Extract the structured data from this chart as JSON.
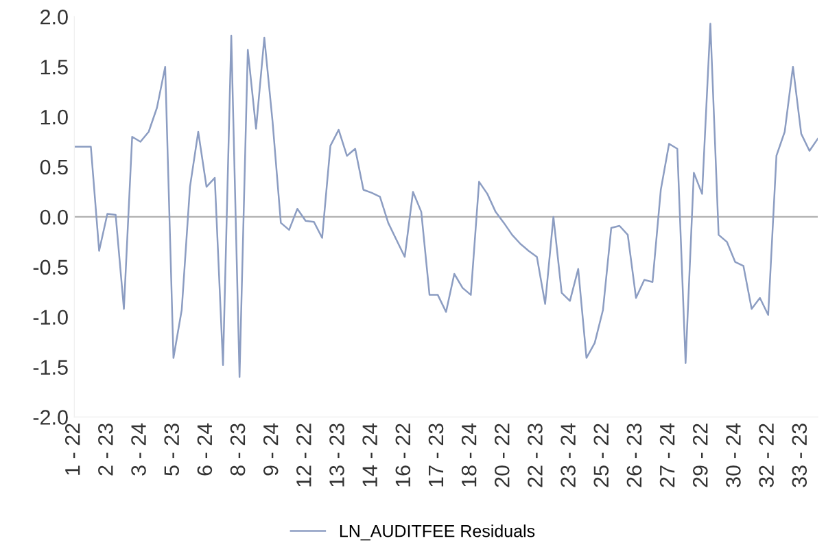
{
  "chart_data": {
    "type": "line",
    "categories": [
      "1 - 22",
      null,
      null,
      null,
      "2 - 23",
      null,
      null,
      null,
      "3 - 24",
      null,
      null,
      null,
      "5 - 23",
      null,
      null,
      null,
      "6 - 24",
      null,
      null,
      null,
      "8 - 23",
      null,
      null,
      null,
      "9 - 24",
      null,
      null,
      null,
      "12 - 22",
      null,
      null,
      null,
      "13 - 23",
      null,
      null,
      null,
      "14 - 24",
      null,
      null,
      null,
      "16 - 22",
      null,
      null,
      null,
      "17 - 23",
      null,
      null,
      null,
      "18 - 24",
      null,
      null,
      null,
      "20 - 22",
      null,
      null,
      null,
      "22 - 23",
      null,
      null,
      null,
      "23 - 24",
      null,
      null,
      null,
      "25 - 22",
      null,
      null,
      null,
      "26 - 23",
      null,
      null,
      null,
      "27 - 24",
      null,
      null,
      null,
      "29 - 22",
      null,
      null,
      null,
      "30 - 24",
      null,
      null,
      null,
      "32 - 22",
      null,
      null,
      null,
      "33 - 23",
      null,
      null
    ],
    "series": [
      {
        "name": "LN_AUDITFEE Residuals",
        "color": "#8c9dc2",
        "values": [
          0.7,
          0.7,
          0.7,
          -0.34,
          0.03,
          0.02,
          -0.92,
          0.8,
          0.75,
          0.85,
          1.09,
          1.5,
          -1.41,
          -0.93,
          0.3,
          0.85,
          0.3,
          0.39,
          -1.48,
          1.81,
          -1.6,
          1.67,
          0.88,
          1.79,
          0.95,
          -0.06,
          -0.13,
          0.08,
          -0.04,
          -0.05,
          -0.21,
          0.71,
          0.87,
          0.61,
          0.68,
          0.27,
          0.24,
          0.2,
          -0.06,
          -0.23,
          -0.4,
          0.25,
          0.05,
          -0.78,
          -0.78,
          -0.95,
          -0.57,
          -0.71,
          -0.78,
          0.35,
          0.23,
          0.05,
          -0.06,
          -0.18,
          -0.27,
          -0.34,
          -0.4,
          -0.87,
          0.0,
          -0.76,
          -0.84,
          -0.52,
          -1.41,
          -1.26,
          -0.93,
          -0.11,
          -0.09,
          -0.18,
          -0.81,
          -0.63,
          -0.65,
          0.27,
          0.73,
          0.68,
          -1.46,
          0.44,
          0.23,
          1.93,
          -0.18,
          -0.25,
          -0.45,
          -0.49,
          -0.92,
          -0.81,
          -0.98,
          0.61,
          0.85,
          1.5,
          0.83,
          0.66,
          0.78
        ]
      }
    ],
    "ylim": [
      -2.0,
      2.0
    ],
    "yticks": [
      {
        "value": -2.0,
        "label": "-2.0"
      },
      {
        "value": -1.5,
        "label": "-1.5"
      },
      {
        "value": -1.0,
        "label": "-1.0"
      },
      {
        "value": -0.5,
        "label": "-0.5"
      },
      {
        "value": 0.0,
        "label": "0.0"
      },
      {
        "value": 0.5,
        "label": "0.5"
      },
      {
        "value": 1.0,
        "label": "1.0"
      },
      {
        "value": 1.5,
        "label": "1.5"
      },
      {
        "value": 2.0,
        "label": "2.0"
      }
    ],
    "ref_lines": [
      {
        "axis": "y",
        "value": 0,
        "color": "#b0b0b0"
      }
    ],
    "legend": "bottom",
    "line_style": "solid",
    "marker": "none"
  }
}
